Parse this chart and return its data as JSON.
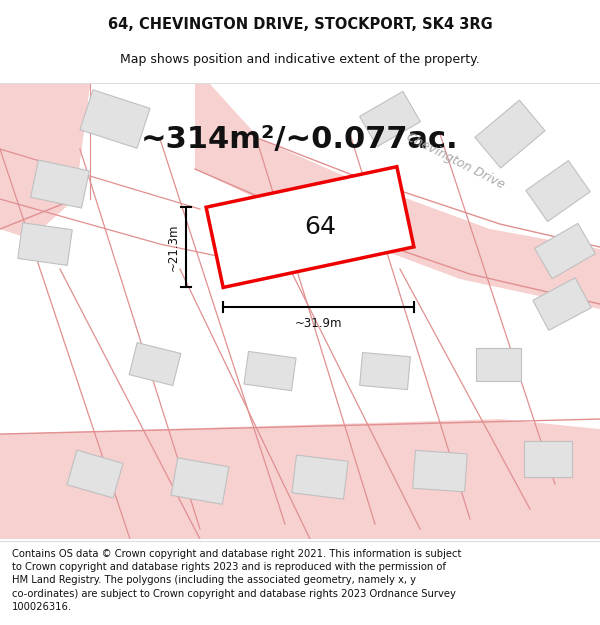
{
  "title": "64, CHEVINGTON DRIVE, STOCKPORT, SK4 3RG",
  "subtitle": "Map shows position and indicative extent of the property.",
  "area_text": "~314m²/~0.077ac.",
  "number_label": "64",
  "width_label": "~31.9m",
  "height_label": "~21.3m",
  "footer_text": "Contains OS data © Crown copyright and database right 2021. This information is subject to Crown copyright and database rights 2023 and is reproduced with the permission of HM Land Registry. The polygons (including the associated geometry, namely x, y co-ordinates) are subject to Crown copyright and database rights 2023 Ordnance Survey 100026316.",
  "bg_color": "#ffffff",
  "map_bg": "#ffffff",
  "road_fill": "#f7d0d0",
  "road_line": "#e09090",
  "bld_fill": "#e2e2e2",
  "bld_edge": "#c0c0c0",
  "plot_color": "#ee0000",
  "title_fontsize": 10.5,
  "subtitle_fontsize": 9,
  "area_fontsize": 22,
  "num_fontsize": 18,
  "dim_fontsize": 8.5,
  "footer_fontsize": 7.2,
  "chevington_fontsize": 9
}
